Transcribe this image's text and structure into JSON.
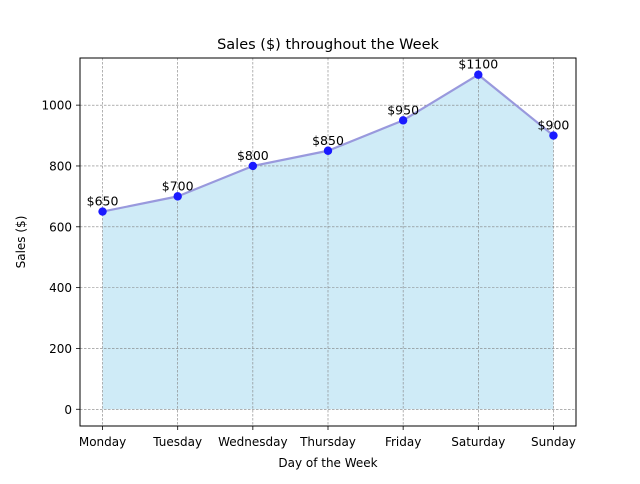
{
  "chart_data": {
    "type": "area",
    "title": "Sales ($) throughout the Week",
    "xlabel": "Day of the Week",
    "ylabel": "Sales ($)",
    "categories": [
      "Monday",
      "Tuesday",
      "Wednesday",
      "Thursday",
      "Friday",
      "Saturday",
      "Sunday"
    ],
    "series": [
      {
        "values": [
          650,
          700,
          800,
          850,
          950,
          1100,
          900
        ],
        "data_labels": [
          "$650",
          "$700",
          "$800",
          "$850",
          "$950",
          "$1100",
          "$900"
        ],
        "line_color": "#9999dd",
        "marker_color": "#1a1aff",
        "fill_color": "#87ceeb"
      }
    ],
    "yticks": [
      0,
      200,
      400,
      600,
      800,
      1000
    ],
    "ylim": [
      -55,
      1155
    ],
    "grid": true,
    "grid_style": "dashed",
    "grid_color": "#808080"
  }
}
